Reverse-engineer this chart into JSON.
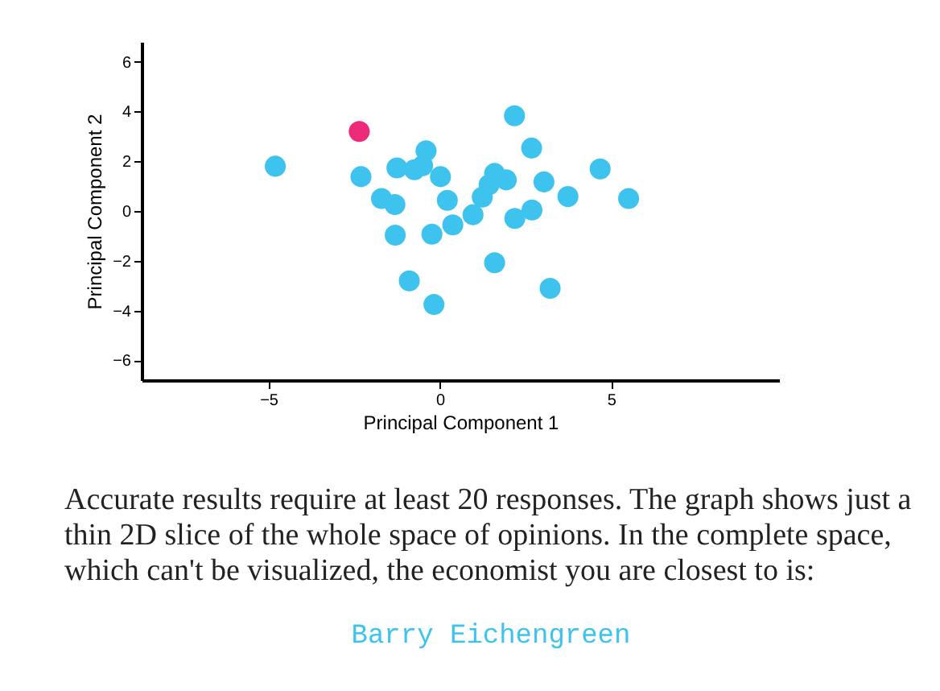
{
  "chart_data": {
    "type": "scatter",
    "xlabel": "Principal Component 1",
    "ylabel": "Principal Component 2",
    "xlim": [
      -8.7,
      9.9
    ],
    "ylim": [
      -6.8,
      6.8
    ],
    "xticks": [
      -5,
      0,
      5
    ],
    "yticks": [
      -6,
      -4,
      -2,
      0,
      2,
      4,
      6
    ],
    "grid": false,
    "legend": false,
    "marker": "circle",
    "series": [
      {
        "color": "#3ec3ef",
        "x": [
          -4.8,
          -2.3,
          -1.25,
          -0.74,
          -0.5,
          -0.4,
          0.02,
          -1.7,
          -1.31,
          -1.3,
          -0.23,
          0.22,
          0.38,
          0.97,
          -0.89,
          -0.17,
          1.24,
          1.44,
          1.6,
          1.94,
          2.18,
          2.68,
          3.04,
          2.69,
          2.19,
          1.6,
          3.22,
          3.74,
          4.68,
          5.51
        ],
        "values": [
          1.8,
          1.38,
          1.73,
          1.66,
          1.82,
          2.42,
          1.38,
          0.5,
          0.26,
          -0.97,
          -0.93,
          0.43,
          -0.56,
          -0.15,
          -2.81,
          -3.76,
          0.56,
          1.06,
          1.51,
          1.25,
          3.83,
          2.53,
          1.17,
          0.04,
          -0.3,
          -2.08,
          -3.11,
          0.58,
          1.69,
          0.5
        ]
      },
      {
        "color": "#ee2a7b",
        "x": [
          -2.35
        ],
        "values": [
          3.2
        ]
      }
    ],
    "annotations": [
      "Accurate results require at least 20 responses. The graph shows just a thin 2D slice of the whole space of opinions. In the complete space, which can't be visualized, the economist you are closest to is:",
      "Barry Eichengreen"
    ]
  }
}
